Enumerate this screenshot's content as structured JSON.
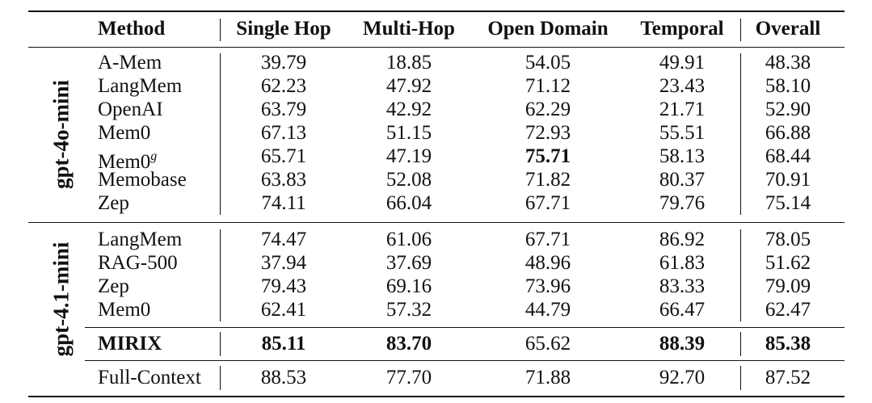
{
  "headers": {
    "method": "Method",
    "single_hop": "Single Hop",
    "multi_hop": "Multi-Hop",
    "open_domain": "Open Domain",
    "temporal": "Temporal",
    "overall": "Overall"
  },
  "groups": {
    "g1": {
      "label": "gpt-4o-mini"
    },
    "g2": {
      "label": "gpt-4.1-mini"
    }
  },
  "rows": [
    {
      "method": "A-Mem",
      "sup": "",
      "single_hop": "39.79",
      "multi_hop": "18.85",
      "open_domain": "54.05",
      "temporal": "49.91",
      "overall": "48.38"
    },
    {
      "method": "LangMem",
      "sup": "",
      "single_hop": "62.23",
      "multi_hop": "47.92",
      "open_domain": "71.12",
      "temporal": "23.43",
      "overall": "58.10"
    },
    {
      "method": "OpenAI",
      "sup": "",
      "single_hop": "63.79",
      "multi_hop": "42.92",
      "open_domain": "62.29",
      "temporal": "21.71",
      "overall": "52.90"
    },
    {
      "method": "Mem0",
      "sup": "",
      "single_hop": "67.13",
      "multi_hop": "51.15",
      "open_domain": "72.93",
      "temporal": "55.51",
      "overall": "66.88"
    },
    {
      "method": "Mem0",
      "sup": "g",
      "single_hop": "65.71",
      "multi_hop": "47.19",
      "open_domain": "75.71",
      "temporal": "58.13",
      "overall": "68.44"
    },
    {
      "method": "Memobase",
      "sup": "",
      "single_hop": "63.83",
      "multi_hop": "52.08",
      "open_domain": "71.82",
      "temporal": "80.37",
      "overall": "70.91"
    },
    {
      "method": "Zep",
      "sup": "",
      "single_hop": "74.11",
      "multi_hop": "66.04",
      "open_domain": "67.71",
      "temporal": "79.76",
      "overall": "75.14"
    },
    {
      "method": "LangMem",
      "sup": "",
      "single_hop": "74.47",
      "multi_hop": "61.06",
      "open_domain": "67.71",
      "temporal": "86.92",
      "overall": "78.05"
    },
    {
      "method": "RAG-500",
      "sup": "",
      "single_hop": "37.94",
      "multi_hop": "37.69",
      "open_domain": "48.96",
      "temporal": "61.83",
      "overall": "51.62"
    },
    {
      "method": "Zep",
      "sup": "",
      "single_hop": "79.43",
      "multi_hop": "69.16",
      "open_domain": "73.96",
      "temporal": "83.33",
      "overall": "79.09"
    },
    {
      "method": "Mem0",
      "sup": "",
      "single_hop": "62.41",
      "multi_hop": "57.32",
      "open_domain": "44.79",
      "temporal": "66.47",
      "overall": "62.47"
    },
    {
      "method": "MIRIX",
      "sup": "",
      "single_hop": "85.11",
      "multi_hop": "83.70",
      "open_domain": "65.62",
      "temporal": "88.39",
      "overall": "85.38"
    },
    {
      "method": "Full-Context",
      "sup": "",
      "single_hop": "88.53",
      "multi_hop": "77.70",
      "open_domain": "71.88",
      "temporal": "92.70",
      "overall": "87.52"
    }
  ]
}
